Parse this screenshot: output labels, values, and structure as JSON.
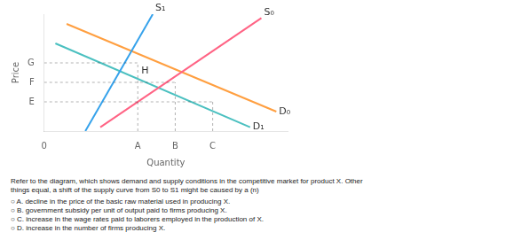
{
  "chart_data": {
    "type": "line",
    "xlabel": "Quantity",
    "ylabel": "Price",
    "xlim": [
      0,
      6.5
    ],
    "ylim": [
      0,
      6.0
    ],
    "xticks": [
      0,
      {
        "value": 2.5,
        "label": "A"
      },
      {
        "value": 3.5,
        "label": "B"
      },
      {
        "value": 4.5,
        "label": "C"
      }
    ],
    "yticks": [
      {
        "value": 1.5,
        "label": "E"
      },
      {
        "value": 2.5,
        "label": "F"
      },
      {
        "value": 3.5,
        "label": "G"
      }
    ],
    "grid": false,
    "series": [
      {
        "name": "S₁",
        "x": [
          1.1,
          2.9
        ],
        "values": [
          0.0,
          6.0
        ]
      },
      {
        "name": "S₀",
        "x": [
          1.5,
          5.8
        ],
        "values": [
          0.2,
          5.8
        ]
      },
      {
        "name": "D₀",
        "x": [
          0.6,
          6.2
        ],
        "values": [
          5.5,
          1.0
        ]
      },
      {
        "name": "D₁",
        "x": [
          0.3,
          5.5
        ],
        "values": [
          4.5,
          0.2
        ]
      }
    ],
    "reference_lines": [
      {
        "x": [
          0,
          2.5
        ],
        "values": [
          3.5,
          3.5
        ]
      },
      {
        "x": [
          0,
          3.5
        ],
        "values": [
          2.5,
          2.5
        ]
      },
      {
        "x": [
          0,
          4.5
        ],
        "values": [
          1.5,
          1.5
        ]
      },
      {
        "x": [
          2.5,
          2.5
        ],
        "values": [
          0,
          3.5
        ]
      },
      {
        "x": [
          3.5,
          3.5
        ],
        "values": [
          0,
          2.5
        ]
      },
      {
        "x": [
          4.5,
          4.5
        ],
        "values": [
          0,
          1.5
        ]
      }
    ],
    "annotations": [
      {
        "text": "H",
        "x": 2.55,
        "y": 3.4
      }
    ],
    "question": "Refer to the diagram, which shows demand and supply conditions in the competitive market for product X. Other\nthings equal, a shift of the supply curve from S0 to S1 might be caused by a (n)",
    "options": [
      "○ A. decline in the price of the basic raw material used in producing X.",
      "○ B. government subsidy per unit of output paid to firms producing X.",
      "○ C. increase in the wage rates paid to laborers employed in the production of X.",
      "○ D. increase in the number of firms producing X."
    ]
  }
}
